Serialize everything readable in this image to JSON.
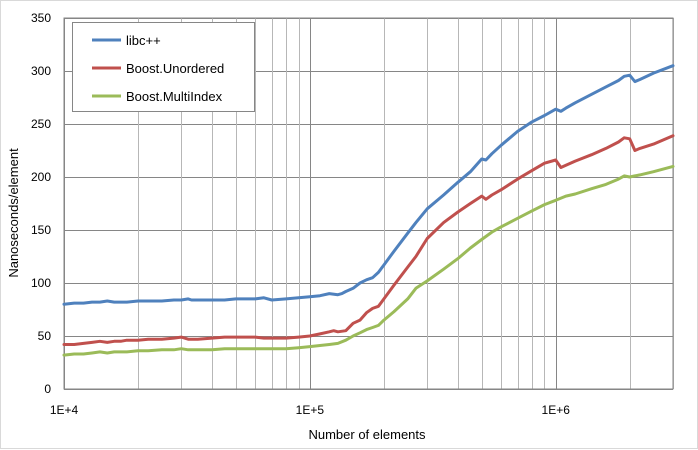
{
  "chart_data": {
    "type": "line",
    "xlabel": "Number of elements",
    "ylabel": "Nanoseconds/element",
    "x_scale": "log",
    "xlim": [
      10000,
      3000000
    ],
    "ylim": [
      0,
      350
    ],
    "y_ticks": [
      0,
      50,
      100,
      150,
      200,
      250,
      300,
      350
    ],
    "y_tick_labels": [
      "0",
      "50",
      "100",
      "150",
      "200",
      "250",
      "300",
      "350"
    ],
    "x_ticks": [
      10000,
      100000,
      1000000
    ],
    "x_tick_labels": [
      "1E+4",
      "1E+5",
      "1E+6"
    ],
    "grid": "major and minor (log decades) on",
    "legend_position": "top-left",
    "series": [
      {
        "name": "libc++",
        "color": "#4f81bd",
        "x": [
          10000,
          11000,
          12000,
          13000,
          14000,
          15000,
          16000,
          17000,
          18000,
          20000,
          22000,
          25000,
          28000,
          30000,
          32000,
          33000,
          35000,
          40000,
          45000,
          50000,
          55000,
          60000,
          65000,
          70000,
          80000,
          90000,
          100000,
          110000,
          120000,
          130000,
          135000,
          140000,
          150000,
          160000,
          170000,
          180000,
          190000,
          200000,
          220000,
          250000,
          270000,
          300000,
          350000,
          400000,
          450000,
          500000,
          520000,
          550000,
          600000,
          700000,
          800000,
          900000,
          1000000,
          1050000,
          1100000,
          1200000,
          1400000,
          1600000,
          1800000,
          1900000,
          2000000,
          2100000,
          2200000,
          2500000,
          3000000
        ],
        "y": [
          80,
          81,
          81,
          82,
          82,
          83,
          82,
          82,
          82,
          83,
          83,
          83,
          84,
          84,
          85,
          84,
          84,
          84,
          84,
          85,
          85,
          85,
          86,
          84,
          85,
          86,
          87,
          88,
          90,
          89,
          90,
          92,
          95,
          100,
          103,
          105,
          110,
          117,
          130,
          147,
          157,
          170,
          183,
          195,
          205,
          217,
          216,
          222,
          230,
          243,
          252,
          258,
          264,
          262,
          265,
          270,
          278,
          285,
          291,
          295,
          296,
          290,
          292,
          298,
          305
        ]
      },
      {
        "name": "Boost.Unordered",
        "color": "#c0504d",
        "x": [
          10000,
          11000,
          12000,
          13000,
          14000,
          15000,
          16000,
          17000,
          18000,
          20000,
          22000,
          25000,
          28000,
          30000,
          32000,
          33000,
          35000,
          40000,
          45000,
          50000,
          55000,
          60000,
          65000,
          70000,
          80000,
          90000,
          100000,
          110000,
          120000,
          125000,
          130000,
          140000,
          150000,
          160000,
          170000,
          180000,
          190000,
          200000,
          220000,
          250000,
          270000,
          300000,
          350000,
          400000,
          450000,
          500000,
          520000,
          550000,
          600000,
          700000,
          800000,
          900000,
          1000000,
          1050000,
          1100000,
          1200000,
          1400000,
          1600000,
          1800000,
          1900000,
          2000000,
          2100000,
          2200000,
          2500000,
          3000000
        ],
        "y": [
          42,
          42,
          43,
          44,
          45,
          44,
          45,
          45,
          46,
          46,
          47,
          47,
          48,
          49,
          47,
          47,
          47,
          48,
          49,
          49,
          49,
          49,
          48,
          48,
          48,
          49,
          50,
          52,
          54,
          55,
          54,
          55,
          62,
          65,
          72,
          76,
          78,
          85,
          98,
          115,
          125,
          142,
          157,
          167,
          175,
          182,
          179,
          183,
          188,
          198,
          206,
          213,
          216,
          209,
          211,
          215,
          221,
          227,
          233,
          237,
          236,
          225,
          227,
          231,
          239
        ]
      },
      {
        "name": "Boost.MultiIndex",
        "color": "#9bbb59",
        "x": [
          10000,
          11000,
          12000,
          13000,
          14000,
          15000,
          16000,
          17000,
          18000,
          20000,
          22000,
          25000,
          28000,
          30000,
          32000,
          33000,
          35000,
          40000,
          45000,
          50000,
          55000,
          60000,
          65000,
          70000,
          80000,
          90000,
          100000,
          110000,
          120000,
          130000,
          140000,
          150000,
          160000,
          170000,
          180000,
          190000,
          200000,
          220000,
          250000,
          270000,
          300000,
          350000,
          400000,
          450000,
          500000,
          550000,
          600000,
          700000,
          800000,
          900000,
          1000000,
          1100000,
          1200000,
          1400000,
          1600000,
          1800000,
          1900000,
          2000000,
          2100000,
          2200000,
          2500000,
          3000000
        ],
        "y": [
          32,
          33,
          33,
          34,
          35,
          34,
          35,
          35,
          35,
          36,
          36,
          37,
          37,
          38,
          37,
          37,
          37,
          37,
          38,
          38,
          38,
          38,
          38,
          38,
          38,
          39,
          40,
          41,
          42,
          43,
          46,
          50,
          53,
          56,
          58,
          60,
          65,
          73,
          85,
          95,
          102,
          113,
          123,
          133,
          141,
          148,
          153,
          161,
          168,
          174,
          178,
          182,
          184,
          189,
          193,
          198,
          201,
          200,
          201,
          202,
          205,
          210
        ]
      }
    ]
  }
}
